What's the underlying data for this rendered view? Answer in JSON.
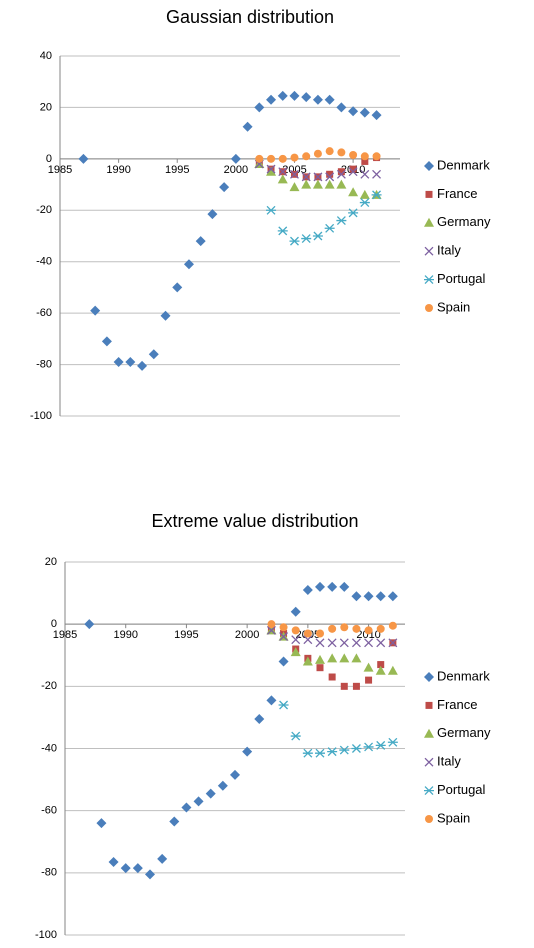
{
  "chart_data": [
    {
      "type": "scatter",
      "title": "Gaussian distribution",
      "grid": true,
      "legend": "right",
      "xlim": [
        1985,
        2014
      ],
      "xticks": [
        1985,
        1990,
        1995,
        2000,
        2005,
        2010
      ],
      "ylim": [
        -100,
        40
      ],
      "yticks": [
        -100,
        -80,
        -60,
        -40,
        -20,
        0,
        20,
        40
      ],
      "series": [
        {
          "name": "Denmark",
          "color": "#4a7ebb",
          "marker": "diamond",
          "x": [
            1987,
            1988,
            1989,
            1990,
            1991,
            1992,
            1993,
            1994,
            1995,
            1996,
            1997,
            1998,
            1999,
            2000,
            2001,
            2002,
            2003,
            2004,
            2005,
            2006,
            2007,
            2008,
            2009,
            2010,
            2011,
            2012
          ],
          "values": [
            0,
            -59,
            -71,
            -79,
            -79,
            -80.5,
            -76,
            -61,
            -50,
            -41,
            -32,
            -21.5,
            -11,
            0,
            12.5,
            20,
            23,
            24.5,
            24.5,
            24,
            23,
            23,
            20,
            18.5,
            18,
            17
          ]
        },
        {
          "name": "France",
          "color": "#be4b48",
          "marker": "square",
          "x": [
            2002,
            2003,
            2004,
            2005,
            2006,
            2007,
            2008,
            2009,
            2010,
            2011,
            2012
          ],
          "values": [
            -2,
            -4,
            -5,
            -6,
            -7,
            -7,
            -6,
            -5,
            -4,
            -1,
            0.5
          ]
        },
        {
          "name": "Germany",
          "color": "#98b954",
          "marker": "triangle",
          "x": [
            2002,
            2003,
            2004,
            2005,
            2006,
            2007,
            2008,
            2009,
            2010,
            2011,
            2012
          ],
          "values": [
            -2,
            -5,
            -8,
            -11,
            -10,
            -10,
            -10,
            -10,
            -13,
            -14,
            -14
          ]
        },
        {
          "name": "Italy",
          "color": "#7d60a0",
          "marker": "x",
          "x": [
            2002,
            2003,
            2004,
            2005,
            2006,
            2007,
            2008,
            2009,
            2010,
            2011,
            2012
          ],
          "values": [
            -2,
            -4,
            -5,
            -6,
            -7,
            -7,
            -7,
            -6,
            -5,
            -6,
            -6
          ]
        },
        {
          "name": "Portugal",
          "color": "#46aac5",
          "marker": "star",
          "x": [
            2003,
            2004,
            2005,
            2006,
            2007,
            2008,
            2009,
            2010,
            2011,
            2012
          ],
          "values": [
            -20,
            -28,
            -32,
            -31,
            -30,
            -27,
            -24,
            -21,
            -17,
            -14
          ]
        },
        {
          "name": "Spain",
          "color": "#f79646",
          "marker": "circle",
          "x": [
            2002,
            2003,
            2004,
            2005,
            2006,
            2007,
            2008,
            2009,
            2010,
            2011,
            2012
          ],
          "values": [
            0,
            0,
            0,
            0.5,
            1,
            2,
            3,
            2.5,
            1.5,
            1,
            1
          ]
        }
      ]
    },
    {
      "type": "scatter",
      "title": "Extreme value distribution",
      "grid": true,
      "legend": "right",
      "xlim": [
        1985,
        2013
      ],
      "xticks": [
        1985,
        1990,
        1995,
        2000,
        2005,
        2010
      ],
      "ylim": [
        -100,
        20
      ],
      "yticks": [
        -100,
        -80,
        -60,
        -40,
        -20,
        0,
        20
      ],
      "series": [
        {
          "name": "Denmark",
          "color": "#4a7ebb",
          "marker": "diamond",
          "x": [
            1987,
            1988,
            1989,
            1990,
            1991,
            1992,
            1993,
            1994,
            1995,
            1996,
            1997,
            1998,
            1999,
            2000,
            2001,
            2002,
            2003,
            2004,
            2005,
            2006,
            2007,
            2008,
            2009,
            2010,
            2011,
            2012
          ],
          "values": [
            0,
            -64,
            -76.5,
            -78.5,
            -78.5,
            -80.5,
            -75.5,
            -63.5,
            -59,
            -57,
            -54.5,
            -52,
            -48.5,
            -41,
            -30.5,
            -24.5,
            -12,
            4,
            11,
            12,
            12,
            12,
            9,
            9,
            9,
            9
          ]
        },
        {
          "name": "France",
          "color": "#be4b48",
          "marker": "square",
          "x": [
            2002,
            2003,
            2004,
            2005,
            2006,
            2007,
            2008,
            2009,
            2010,
            2011,
            2012
          ],
          "values": [
            -2,
            -3,
            -8,
            -11,
            -14,
            -17,
            -20,
            -20,
            -18,
            -13,
            -6
          ]
        },
        {
          "name": "Germany",
          "color": "#98b954",
          "marker": "triangle",
          "x": [
            2002,
            2003,
            2004,
            2005,
            2006,
            2007,
            2008,
            2009,
            2010,
            2011,
            2012
          ],
          "values": [
            -2,
            -4,
            -9,
            -12,
            -11.5,
            -11,
            -11,
            -11,
            -14,
            -15,
            -15
          ]
        },
        {
          "name": "Italy",
          "color": "#7d60a0",
          "marker": "x",
          "x": [
            2002,
            2003,
            2004,
            2005,
            2006,
            2007,
            2008,
            2009,
            2010,
            2011,
            2012
          ],
          "values": [
            -2,
            -4,
            -5,
            -5,
            -6,
            -6,
            -6,
            -6,
            -6,
            -6,
            -6
          ]
        },
        {
          "name": "Portugal",
          "color": "#46aac5",
          "marker": "star",
          "x": [
            2003,
            2004,
            2005,
            2006,
            2007,
            2008,
            2009,
            2010,
            2011,
            2012
          ],
          "values": [
            -26,
            -36,
            -41.5,
            -41.5,
            -41,
            -40.5,
            -40,
            -39.5,
            -39,
            -38
          ]
        },
        {
          "name": "Spain",
          "color": "#f79646",
          "marker": "circle",
          "x": [
            2002,
            2003,
            2004,
            2005,
            2006,
            2007,
            2008,
            2009,
            2010,
            2011,
            2012
          ],
          "values": [
            0,
            -1,
            -2,
            -3,
            -3,
            -1.5,
            -1,
            -1.5,
            -2,
            -1.5,
            -0.5
          ]
        }
      ]
    }
  ]
}
